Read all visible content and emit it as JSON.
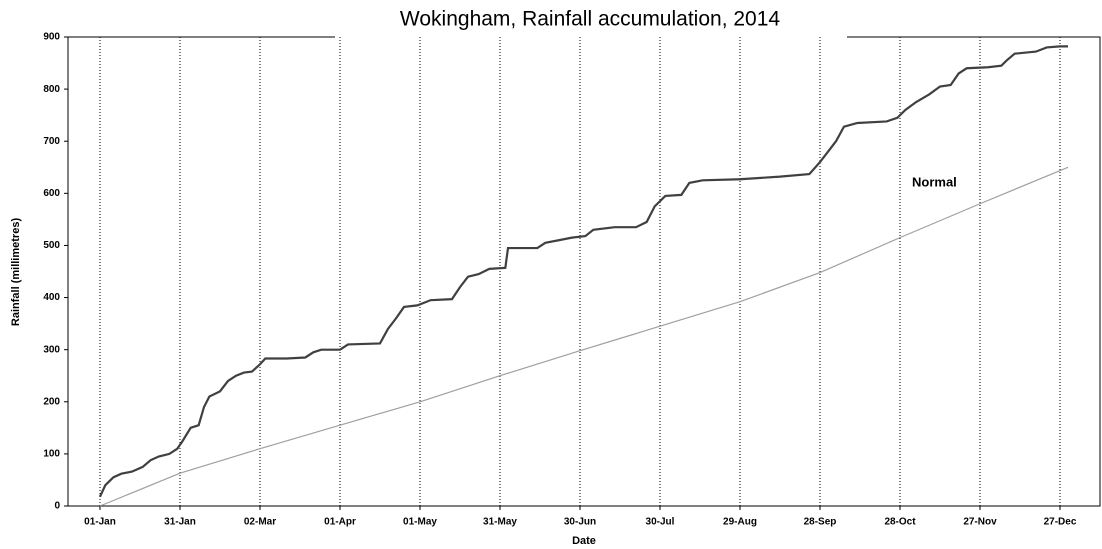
{
  "chart_data": {
    "type": "line",
    "title": "Wokingham, Rainfall accumulation, 2014",
    "x_label": "Date",
    "y_label": "Rainfall (millimetres)",
    "annotation": "Normal",
    "grid": true,
    "xlim": [
      -12,
      375
    ],
    "ylim": [
      0,
      900
    ],
    "xticks": [
      {
        "value": 0,
        "label": "01-Jan"
      },
      {
        "value": 30,
        "label": "31-Jan"
      },
      {
        "value": 60,
        "label": "02-Mar"
      },
      {
        "value": 90,
        "label": "01-Apr"
      },
      {
        "value": 120,
        "label": "01-May"
      },
      {
        "value": 150,
        "label": "31-May"
      },
      {
        "value": 180,
        "label": "30-Jun"
      },
      {
        "value": 210,
        "label": "30-Jul"
      },
      {
        "value": 240,
        "label": "29-Aug"
      },
      {
        "value": 270,
        "label": "28-Sep"
      },
      {
        "value": 300,
        "label": "28-Oct"
      },
      {
        "value": 330,
        "label": "27-Nov"
      },
      {
        "value": 360,
        "label": "27-Dec"
      }
    ],
    "yticks": [
      0,
      100,
      200,
      300,
      400,
      500,
      600,
      700,
      800,
      900
    ],
    "series": [
      {
        "name": "Rainfall",
        "color": "#404040",
        "x": [
          0,
          2,
          5,
          8,
          12,
          16,
          19,
          22,
          26,
          29,
          31,
          34,
          37,
          39,
          41,
          45,
          48,
          51,
          54,
          57,
          60,
          62,
          70,
          77,
          80,
          83,
          90,
          93,
          105,
          108,
          111,
          114,
          119,
          124,
          132,
          135,
          138,
          142,
          146,
          152,
          153,
          164,
          167,
          172,
          177,
          182,
          185,
          193,
          201,
          205,
          208,
          212,
          218,
          221,
          226,
          240,
          255,
          266,
          270,
          273,
          276,
          279,
          284,
          295,
          299,
          302,
          306,
          311,
          315,
          319,
          322,
          325,
          333,
          338,
          340,
          343,
          351,
          355,
          360,
          363
        ],
        "values": [
          18,
          40,
          55,
          62,
          66,
          75,
          88,
          95,
          100,
          110,
          125,
          150,
          155,
          190,
          210,
          220,
          240,
          250,
          256,
          258,
          272,
          283,
          283,
          285,
          295,
          300,
          300,
          310,
          312,
          340,
          360,
          382,
          385,
          395,
          397,
          420,
          440,
          445,
          455,
          457,
          495,
          495,
          505,
          510,
          515,
          518,
          530,
          535,
          535,
          545,
          575,
          595,
          597,
          620,
          625,
          627,
          632,
          637,
          660,
          680,
          700,
          728,
          735,
          738,
          745,
          760,
          775,
          790,
          805,
          808,
          830,
          840,
          842,
          845,
          855,
          868,
          872,
          880,
          882,
          882
        ]
      },
      {
        "name": "Normal",
        "color": "#a0a0a0",
        "x": [
          0,
          30,
          60,
          90,
          120,
          150,
          180,
          210,
          240,
          270,
          300,
          330,
          363
        ],
        "values": [
          0,
          63,
          110,
          155,
          200,
          250,
          298,
          345,
          392,
          448,
          515,
          580,
          650
        ]
      }
    ]
  }
}
